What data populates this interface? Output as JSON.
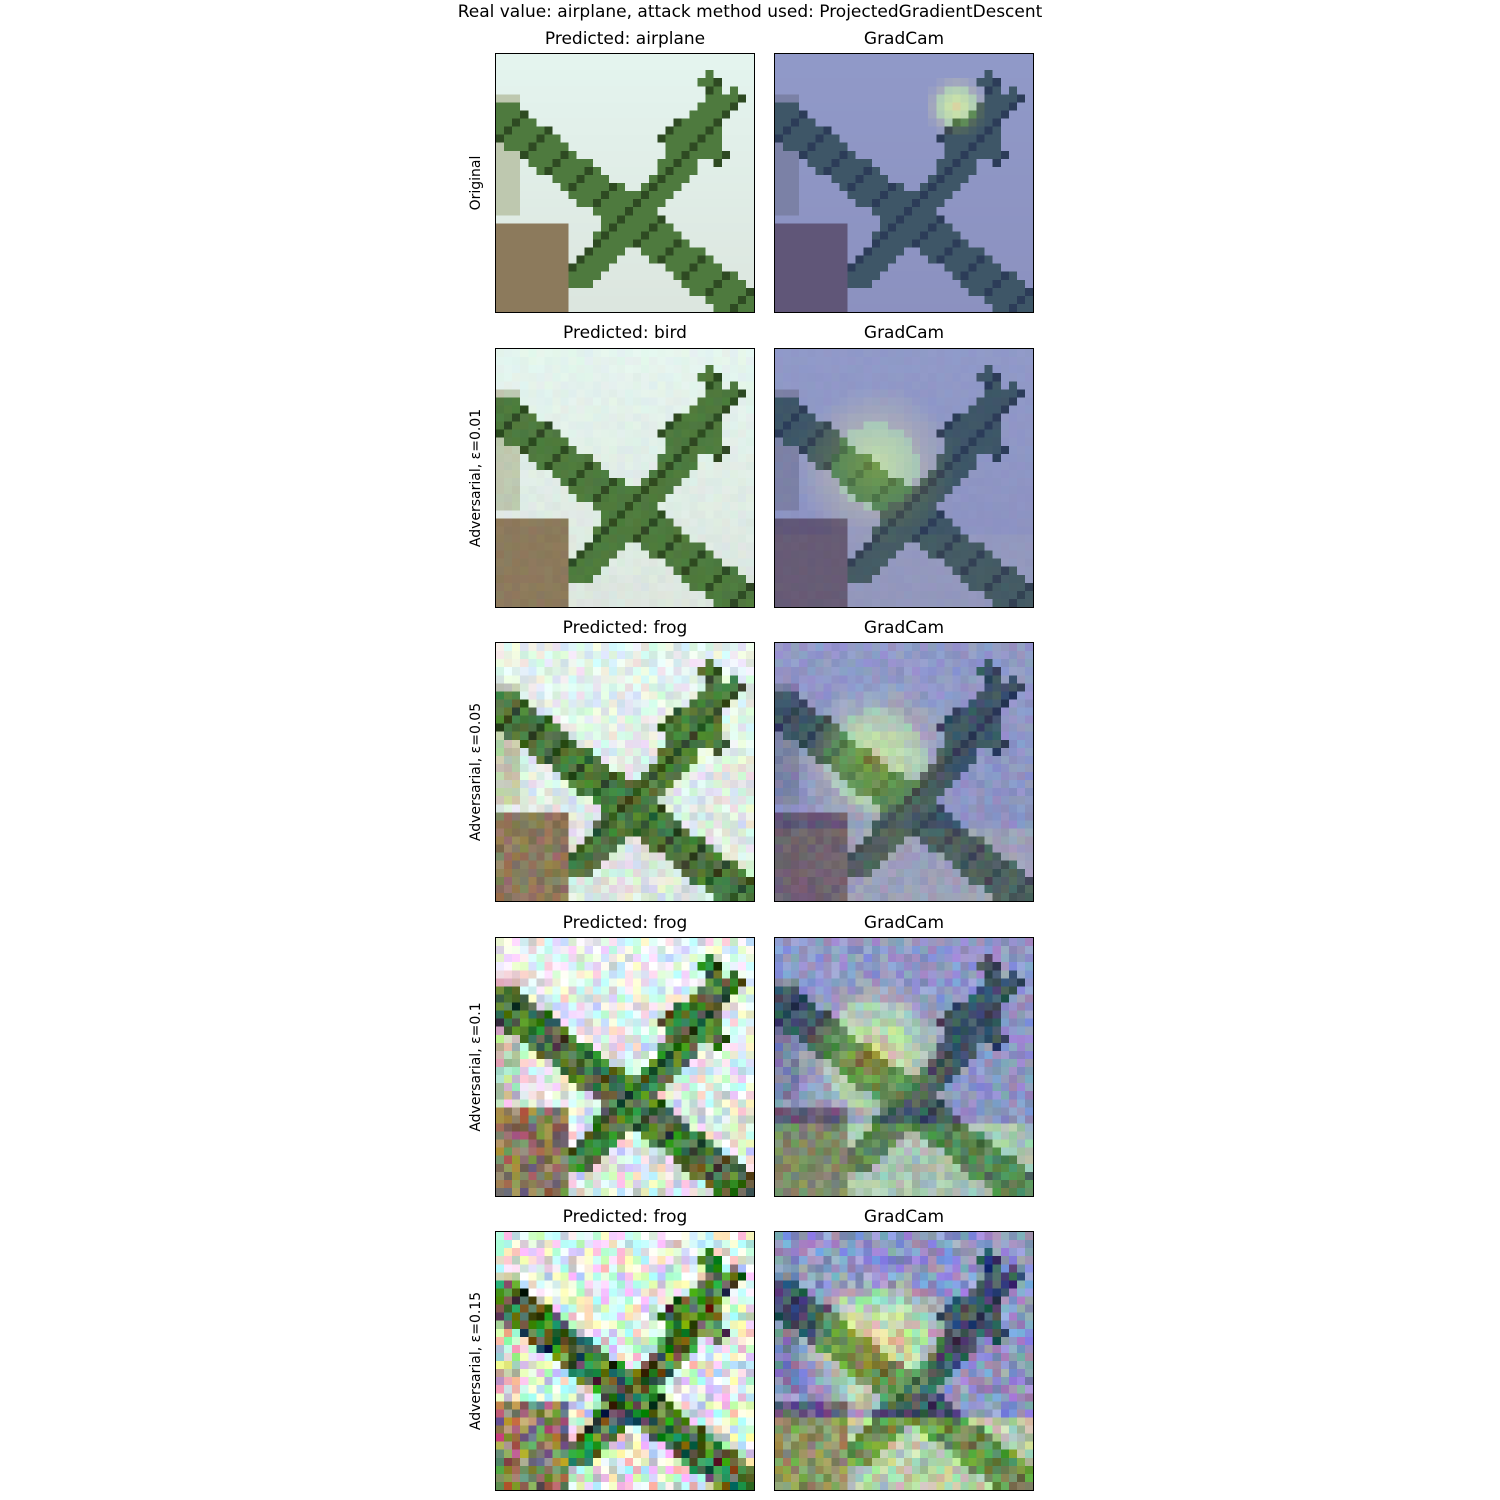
{
  "figure": {
    "suptitle": "Real value: airplane, attack method used: ProjectedGradientDescent"
  },
  "rows": [
    {
      "row_label": "Original",
      "left_title": "Predicted: airplane",
      "right_title": "GradCam",
      "epsilon": 0.0
    },
    {
      "row_label": "Adversarial, ε=0.01",
      "left_title": "Predicted: bird",
      "right_title": "GradCam",
      "epsilon": 0.01
    },
    {
      "row_label": "Adversarial, ε=0.05",
      "left_title": "Predicted: frog",
      "right_title": "GradCam",
      "epsilon": 0.05
    },
    {
      "row_label": "Adversarial, ε=0.1",
      "left_title": "Predicted: frog",
      "right_title": "GradCam",
      "epsilon": 0.1
    },
    {
      "row_label": "Adversarial, ε=0.15",
      "left_title": "Predicted: frog",
      "right_title": "GradCam",
      "epsilon": 0.15
    }
  ],
  "colors": {
    "sky": "#e4f4ee",
    "ground": "#8c7a5c",
    "plane": "#4e7a3e",
    "plane_dark": "#2e4a22",
    "heat_low": "#2a2a9a",
    "heat_high": "#e0c040"
  }
}
